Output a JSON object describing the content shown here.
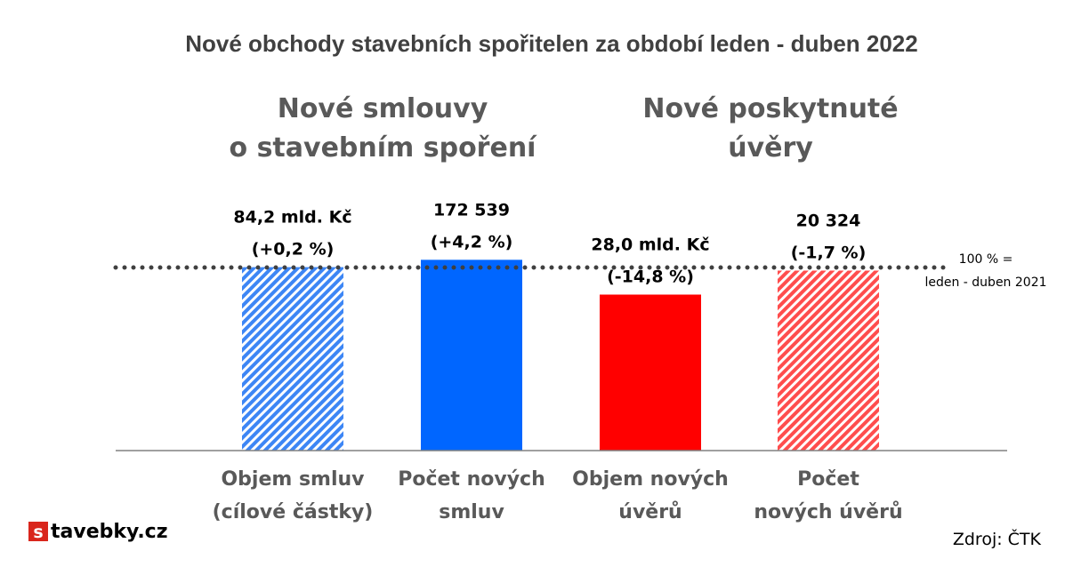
{
  "chart_data": {
    "type": "bar",
    "title": "Nové obchody stavebních spořitelen za období leden - duben 2022",
    "groups": [
      {
        "lines": [
          "Nové smlouvy",
          "o stavebním spoření"
        ]
      },
      {
        "lines": [
          "Nové poskytnuté",
          "úvěry"
        ]
      }
    ],
    "categories": [
      [
        "Objem smluv",
        "(cílové částky)"
      ],
      [
        "Počet  nových",
        "smluv"
      ],
      [
        "Objem nových",
        "úvěrů"
      ],
      [
        "Počet",
        "nových úvěrů"
      ]
    ],
    "values": [
      100.2,
      104.2,
      85.2,
      98.3
    ],
    "data_labels": [
      [
        "84,2 mld. Kč",
        "(+0,2 %)"
      ],
      [
        "172 539",
        "(+4,2 %)"
      ],
      [
        "28,0 mld. Kč",
        "(-14,8 %)"
      ],
      [
        "20 324",
        "(-1,7 %)"
      ]
    ],
    "bar_styles": [
      "hatched",
      "solid",
      "solid",
      "hatched"
    ],
    "reference_line": {
      "value": 100,
      "lines": [
        "100 % =",
        "leden - duben 2021"
      ]
    },
    "ylim": [
      0,
      100
    ],
    "colors": {
      "blue": "#0066ff",
      "blue_hatch": "#3d86f5",
      "red": "#ff0000",
      "red_hatch": "#ff4d4d",
      "baseline": "#808080",
      "reference": "#3f3f3f"
    }
  },
  "branding": {
    "logo_letter": "s",
    "logo_text": "tavebky.cz",
    "logo_color": "#d9261c"
  },
  "source": "Zdroj: ČTK"
}
